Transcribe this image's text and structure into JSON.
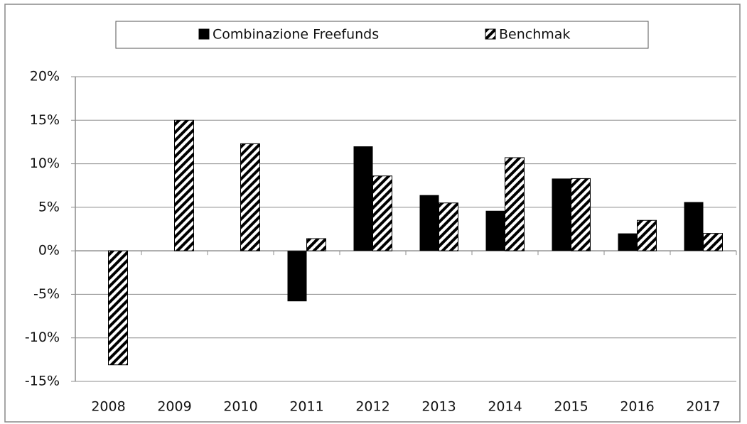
{
  "chart_data": {
    "type": "bar",
    "categories": [
      "2008",
      "2009",
      "2010",
      "2011",
      "2012",
      "2013",
      "2014",
      "2015",
      "2016",
      "2017"
    ],
    "series": [
      {
        "name": "Combinazione Freefunds",
        "color": "#000000",
        "values": [
          null,
          null,
          null,
          -5.8,
          12.0,
          6.4,
          4.6,
          8.3,
          2.0,
          5.6
        ]
      },
      {
        "name": "Benchmak",
        "color": "#000000",
        "pattern": "hatch",
        "values": [
          -13.1,
          15.0,
          12.3,
          1.4,
          8.6,
          5.5,
          10.7,
          8.3,
          3.5,
          2.0
        ]
      }
    ],
    "ylim": [
      -15,
      20
    ],
    "yticks": [
      {
        "value": -15,
        "label": "-15%"
      },
      {
        "value": -10,
        "label": "-10%"
      },
      {
        "value": -5,
        "label": "-5%"
      },
      {
        "value": 0,
        "label": "0%"
      },
      {
        "value": 5,
        "label": "5%"
      },
      {
        "value": 10,
        "label": "10%"
      },
      {
        "value": 15,
        "label": "15%"
      },
      {
        "value": 20,
        "label": "20%"
      }
    ],
    "grid": true,
    "legend": "top"
  }
}
